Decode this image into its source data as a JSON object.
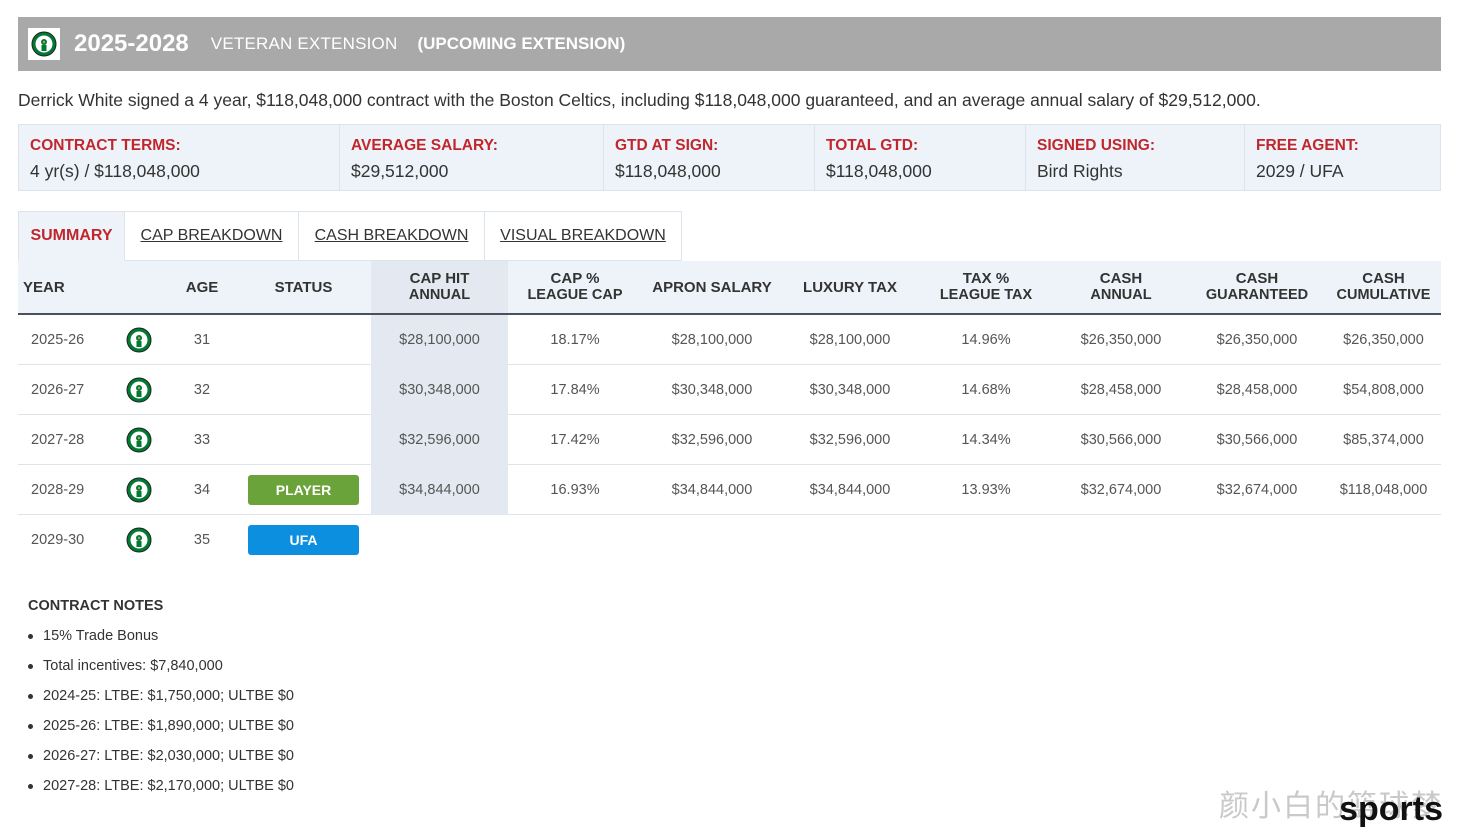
{
  "header": {
    "years": "2025-2028",
    "type": "VETERAN EXTENSION",
    "upcoming": "(UPCOMING EXTENSION)",
    "logo_icon": "celtics-logo-icon"
  },
  "summary_text": "Derrick White signed a 4 year, $118,048,000 contract with the Boston Celtics, including $118,048,000 guaranteed, and an average annual salary of $29,512,000.",
  "terms": [
    {
      "label": "CONTRACT TERMS:",
      "value": "4 yr(s) / $118,048,000"
    },
    {
      "label": "AVERAGE SALARY:",
      "value": "$29,512,000"
    },
    {
      "label": "GTD AT SIGN:",
      "value": "$118,048,000"
    },
    {
      "label": "TOTAL GTD:",
      "value": "$118,048,000"
    },
    {
      "label": "SIGNED USING:",
      "value": "Bird Rights"
    },
    {
      "label": "FREE AGENT:",
      "value": "2029 / UFA"
    }
  ],
  "tabs": [
    {
      "label": "SUMMARY",
      "active": true
    },
    {
      "label": "CAP BREAKDOWN",
      "active": false
    },
    {
      "label": "CASH BREAKDOWN",
      "active": false
    },
    {
      "label": "VISUAL BREAKDOWN",
      "active": false
    }
  ],
  "columns": {
    "year": "YEAR",
    "age": "AGE",
    "status": "STATUS",
    "cap_hit": [
      "CAP HIT",
      "ANNUAL"
    ],
    "cap_pct": [
      "CAP %",
      "LEAGUE CAP"
    ],
    "apron": "APRON SALARY",
    "luxury": "LUXURY TAX",
    "tax_pct": [
      "TAX %",
      "LEAGUE TAX"
    ],
    "cash_annual": [
      "CASH",
      "ANNUAL"
    ],
    "cash_gtd": [
      "CASH",
      "GUARANTEED"
    ],
    "cash_cum": [
      "CASH",
      "CUMULATIVE"
    ]
  },
  "rows": [
    {
      "year": "2025-26",
      "age": "31",
      "status": "",
      "cap_hit": "$28,100,000",
      "cap_pct": "18.17%",
      "apron": "$28,100,000",
      "luxury": "$28,100,000",
      "tax_pct": "14.96%",
      "cash_annual": "$26,350,000",
      "cash_gtd": "$26,350,000",
      "cash_cum": "$26,350,000"
    },
    {
      "year": "2026-27",
      "age": "32",
      "status": "",
      "cap_hit": "$30,348,000",
      "cap_pct": "17.84%",
      "apron": "$30,348,000",
      "luxury": "$30,348,000",
      "tax_pct": "14.68%",
      "cash_annual": "$28,458,000",
      "cash_gtd": "$28,458,000",
      "cash_cum": "$54,808,000"
    },
    {
      "year": "2027-28",
      "age": "33",
      "status": "",
      "cap_hit": "$32,596,000",
      "cap_pct": "17.42%",
      "apron": "$32,596,000",
      "luxury": "$32,596,000",
      "tax_pct": "14.34%",
      "cash_annual": "$30,566,000",
      "cash_gtd": "$30,566,000",
      "cash_cum": "$85,374,000"
    },
    {
      "year": "2028-29",
      "age": "34",
      "status": "PLAYER",
      "cap_hit": "$34,844,000",
      "cap_pct": "16.93%",
      "apron": "$34,844,000",
      "luxury": "$34,844,000",
      "tax_pct": "13.93%",
      "cash_annual": "$32,674,000",
      "cash_gtd": "$32,674,000",
      "cash_cum": "$118,048,000"
    },
    {
      "year": "2029-30",
      "age": "35",
      "status": "UFA"
    }
  ],
  "colors": {
    "accent_red": "#c0272d",
    "player_green": "#6aa33a",
    "ufa_blue": "#0d8fe0",
    "header_gray": "#a9a9a9"
  },
  "notes": {
    "title": "CONTRACT NOTES",
    "items": [
      "15% Trade Bonus",
      "Total incentives: $7,840,000",
      "2024-25: LTBE: $1,750,000; ULTBE $0",
      "2025-26: LTBE: $1,890,000; ULTBE $0",
      "2026-27: LTBE: $2,030,000; ULTBE $0",
      "2027-28: LTBE: $2,170,000; ULTBE $0"
    ]
  },
  "watermark": {
    "cn": "颜小白的篮球梦",
    "sports": "sports"
  }
}
